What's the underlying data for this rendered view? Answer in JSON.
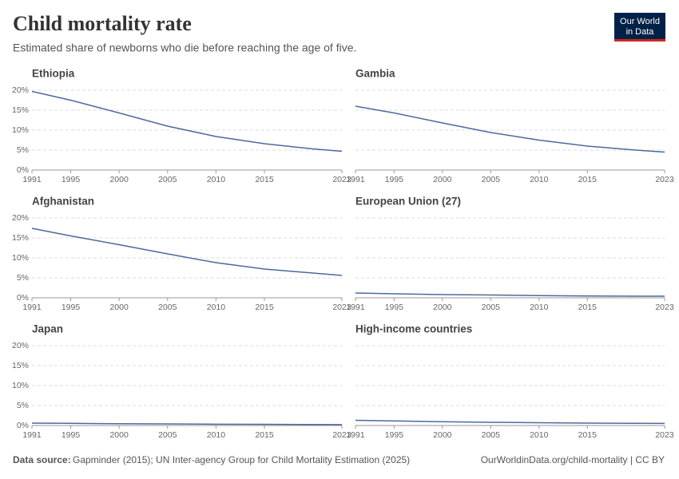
{
  "title": "Child mortality rate",
  "subtitle": "Estimated share of newborns who die before reaching the age of five.",
  "logo": [
    "Our World",
    "in Data"
  ],
  "source_label": "Data source:",
  "source": "Gapminder (2015); UN Inter-agency Group for Child Mortality Estimation (2025)",
  "url": "OurWorldinData.org/child-mortality | CC BY",
  "chart_data": [
    {
      "type": "line",
      "title": "Ethiopia",
      "x": [
        1991,
        1995,
        2000,
        2005,
        2010,
        2015,
        2020,
        2023
      ],
      "series": [
        {
          "name": "Ethiopia",
          "color": "#4c6a9c",
          "values": [
            19.7,
            17.5,
            14.3,
            11.0,
            8.4,
            6.6,
            5.3,
            4.7
          ]
        }
      ],
      "xlim": [
        1991,
        2023
      ],
      "xticks": [
        1991,
        1995,
        2000,
        2005,
        2010,
        2015,
        2023
      ],
      "ylim": [
        0,
        20
      ],
      "yticks": [
        {
          "value": 0,
          "label": "0%"
        },
        {
          "value": 5,
          "label": "5%"
        },
        {
          "value": 10,
          "label": "10%"
        },
        {
          "value": 15,
          "label": "15%"
        },
        {
          "value": 20,
          "label": "20%"
        }
      ],
      "grid": true
    },
    {
      "type": "line",
      "title": "Gambia",
      "x": [
        1991,
        1995,
        2000,
        2005,
        2010,
        2015,
        2020,
        2023
      ],
      "series": [
        {
          "name": "Gambia",
          "color": "#4c6a9c",
          "values": [
            16.0,
            14.3,
            11.8,
            9.4,
            7.5,
            6.0,
            5.0,
            4.5
          ]
        }
      ],
      "xlim": [
        1991,
        2023
      ],
      "xticks": [
        1991,
        1995,
        2000,
        2005,
        2010,
        2015,
        2023
      ],
      "ylim": [
        0,
        20
      ],
      "yticks": [
        0,
        5,
        10,
        15,
        20
      ],
      "grid": true
    },
    {
      "type": "line",
      "title": "Afghanistan",
      "x": [
        1991,
        1995,
        2000,
        2005,
        2010,
        2015,
        2020,
        2023
      ],
      "series": [
        {
          "name": "Afghanistan",
          "color": "#4c6a9c",
          "values": [
            17.4,
            15.5,
            13.3,
            11.0,
            8.8,
            7.2,
            6.2,
            5.6
          ]
        }
      ],
      "xlim": [
        1991,
        2023
      ],
      "xticks": [
        1991,
        1995,
        2000,
        2005,
        2010,
        2015,
        2023
      ],
      "ylim": [
        0,
        20
      ],
      "yticks": [
        {
          "value": 0,
          "label": "0%"
        },
        {
          "value": 5,
          "label": "5%"
        },
        {
          "value": 10,
          "label": "10%"
        },
        {
          "value": 15,
          "label": "15%"
        },
        {
          "value": 20,
          "label": "20%"
        }
      ],
      "grid": true
    },
    {
      "type": "line",
      "title": "European Union (27)",
      "x": [
        1991,
        1995,
        2000,
        2005,
        2010,
        2015,
        2020,
        2023
      ],
      "series": [
        {
          "name": "European Union (27)",
          "color": "#4c6a9c",
          "values": [
            1.2,
            1.0,
            0.8,
            0.7,
            0.55,
            0.45,
            0.4,
            0.4
          ]
        }
      ],
      "xlim": [
        1991,
        2023
      ],
      "xticks": [
        1991,
        1995,
        2000,
        2005,
        2010,
        2015,
        2023
      ],
      "ylim": [
        0,
        20
      ],
      "yticks": [
        0,
        5,
        10,
        15,
        20
      ],
      "grid": true
    },
    {
      "type": "line",
      "title": "Japan",
      "x": [
        1991,
        1995,
        2000,
        2005,
        2010,
        2015,
        2020,
        2023
      ],
      "series": [
        {
          "name": "Japan",
          "color": "#4c6a9c",
          "values": [
            0.6,
            0.55,
            0.45,
            0.4,
            0.33,
            0.29,
            0.25,
            0.23
          ]
        }
      ],
      "xlim": [
        1991,
        2023
      ],
      "xticks": [
        1991,
        1995,
        2000,
        2005,
        2010,
        2015,
        2023
      ],
      "ylim": [
        0,
        20
      ],
      "yticks": [
        {
          "value": 0,
          "label": "0%"
        },
        {
          "value": 5,
          "label": "5%"
        },
        {
          "value": 10,
          "label": "10%"
        },
        {
          "value": 15,
          "label": "15%"
        },
        {
          "value": 20,
          "label": "20%"
        }
      ],
      "grid": true
    },
    {
      "type": "line",
      "title": "High-income countries",
      "x": [
        1991,
        1995,
        2000,
        2005,
        2010,
        2015,
        2020,
        2023
      ],
      "series": [
        {
          "name": "High-income countries",
          "color": "#4c6a9c",
          "values": [
            1.3,
            1.15,
            0.95,
            0.8,
            0.7,
            0.6,
            0.55,
            0.52
          ]
        }
      ],
      "xlim": [
        1991,
        2023
      ],
      "xticks": [
        1991,
        1995,
        2000,
        2005,
        2010,
        2015,
        2023
      ],
      "ylim": [
        0,
        20
      ],
      "yticks": [
        0,
        5,
        10,
        15,
        20
      ],
      "grid": true
    }
  ]
}
